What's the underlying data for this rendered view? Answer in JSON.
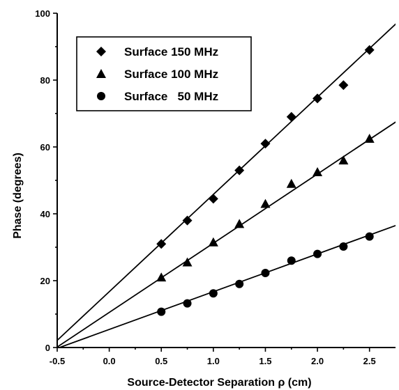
{
  "chart_data": {
    "type": "scatter",
    "xlabel": "Source-Detector Separation ρ (cm)",
    "ylabel": "Phase (degrees)",
    "xlim": [
      -0.5,
      2.75
    ],
    "ylim": [
      0,
      100
    ],
    "x_ticks": [
      -0.5,
      0.0,
      0.5,
      1.0,
      1.5,
      2.0,
      2.5
    ],
    "x_tick_labels": [
      "-0.5",
      "0.0",
      "0.5",
      "1.0",
      "1.5",
      "2.0",
      "2.5"
    ],
    "y_ticks": [
      0,
      20,
      40,
      60,
      80,
      100
    ],
    "y_tick_labels": [
      "0",
      "20",
      "40",
      "60",
      "80",
      "100"
    ],
    "legend_position": "top-left",
    "series": [
      {
        "name": "Surface 150 MHz",
        "marker": "diamond",
        "x": [
          0.5,
          0.75,
          1.0,
          1.25,
          1.5,
          1.75,
          2.0,
          2.25,
          2.5
        ],
        "y": [
          31,
          38,
          44.5,
          53,
          61,
          69,
          74.5,
          78.5,
          89
        ],
        "fit": {
          "slope": 29.1,
          "intercept": 16.7
        }
      },
      {
        "name": "Surface 100 MHz",
        "marker": "triangle",
        "x": [
          0.5,
          0.75,
          1.0,
          1.25,
          1.5,
          1.75,
          2.0,
          2.25,
          2.5
        ],
        "y": [
          21,
          25.5,
          31.5,
          37,
          43,
          49,
          52.5,
          56,
          62.5
        ],
        "fit": {
          "slope": 20.7,
          "intercept": 10.5
        }
      },
      {
        "name": "Surface   50 MHz",
        "marker": "circle",
        "x": [
          0.5,
          0.75,
          1.0,
          1.25,
          1.5,
          1.75,
          2.0,
          2.25,
          2.5
        ],
        "y": [
          10.7,
          13.2,
          16.2,
          19,
          22.3,
          26,
          28,
          30.2,
          33.2
        ],
        "fit": {
          "slope": 11.3,
          "intercept": 5.4
        }
      }
    ]
  }
}
